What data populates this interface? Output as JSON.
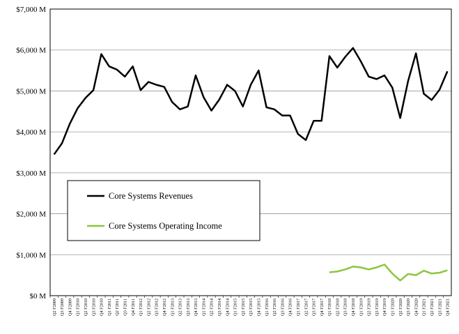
{
  "chart_data": {
    "type": "line",
    "categories": [
      "Q2 F2009",
      "Q3 F2009",
      "Q4 F2009",
      "Q1 F2010",
      "Q2 F2010",
      "Q3 F2010",
      "Q4 F2010",
      "Q1 F2011",
      "Q2 F2011",
      "Q3 F2011",
      "Q4 F2011",
      "Q1 F2012",
      "Q2 F2012",
      "Q3 F2012",
      "Q4 F2012",
      "Q1 F2013",
      "Q2 F2013",
      "Q3 F2013",
      "Q4 F2013",
      "Q1 F2014",
      "Q2 F2014",
      "Q3 F2014",
      "Q4 F2014",
      "Q1 F2015",
      "Q2 F2015",
      "Q3 F2015",
      "Q4 F2015",
      "Q1 F2016",
      "Q2 F2016",
      "Q3 F2016",
      "Q4 F2016",
      "Q1 F2017",
      "Q2 F2017",
      "Q3 F2017",
      "Q4 F2017",
      "Q1 F2018",
      "Q2 F2018",
      "Q3 F2018",
      "Q4 F2018",
      "Q1 F2019",
      "Q2 F2019",
      "Q3 F2019",
      "Q4 F2019",
      "Q1 F2020",
      "Q2 F2020",
      "Q3 F2020",
      "Q4 F2020",
      "Q1 F2021",
      "Q2 F2021",
      "Q3 F2021",
      "Q4 F2021"
    ],
    "series": [
      {
        "name": "Core Systems Revenues",
        "color": "#000000",
        "values": [
          3450,
          3720,
          4200,
          4580,
          4830,
          5020,
          5900,
          5600,
          5520,
          5350,
          5600,
          5020,
          5220,
          5150,
          5100,
          4730,
          4550,
          4620,
          5380,
          4850,
          4520,
          4790,
          5150,
          5000,
          4620,
          5150,
          5500,
          4600,
          4550,
          4400,
          4400,
          3950,
          3800,
          4270,
          4270,
          5850,
          5570,
          5830,
          6050,
          5720,
          5350,
          5290,
          5380,
          5080,
          4340,
          5240,
          5920,
          4930,
          4780,
          5030,
          5480
        ]
      },
      {
        "name": "Core Systems Operating Income",
        "color": "#8cc63f",
        "values": [
          null,
          null,
          null,
          null,
          null,
          null,
          null,
          null,
          null,
          null,
          null,
          null,
          null,
          null,
          null,
          null,
          null,
          null,
          null,
          null,
          null,
          null,
          null,
          null,
          null,
          null,
          null,
          null,
          null,
          null,
          null,
          null,
          null,
          null,
          null,
          570,
          590,
          640,
          710,
          690,
          640,
          690,
          760,
          540,
          370,
          530,
          500,
          610,
          540,
          560,
          620
        ]
      }
    ],
    "yticks": [
      "$0 M",
      "$1,000 M",
      "$2,000 M",
      "$3,000 M",
      "$4,000 M",
      "$5,000 M",
      "$6,000 M",
      "$7,000 M"
    ],
    "ylim": [
      0,
      7000
    ],
    "ytick_values": [
      0,
      1000,
      2000,
      3000,
      4000,
      5000,
      6000,
      7000
    ],
    "grid": "horizontal",
    "legend_position": "left-middle"
  }
}
